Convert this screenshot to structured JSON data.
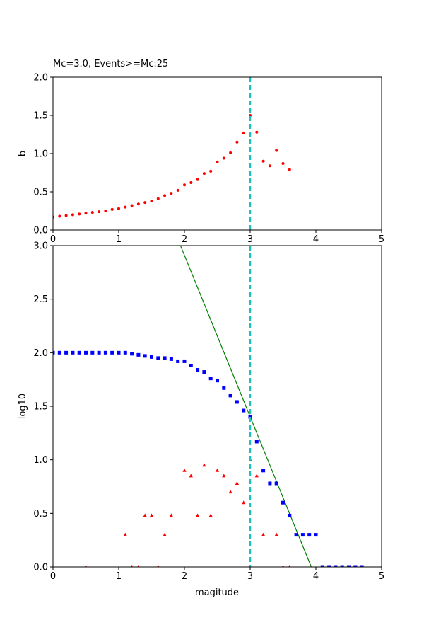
{
  "chart_data": [
    {
      "type": "scatter",
      "title": "Mc=3.0, Events>=Mc:25",
      "xlabel": "",
      "ylabel": "b",
      "xlim": [
        0,
        5
      ],
      "ylim": [
        0,
        2.0
      ],
      "xticks": [
        "0",
        "1",
        "2",
        "3",
        "4",
        "5"
      ],
      "yticks": [
        "0.0",
        "0.5",
        "1.0",
        "1.5",
        "2.0"
      ],
      "grid": false,
      "series": [
        {
          "color": "#ff0000",
          "marker": "circle",
          "x": [
            0.0,
            0.1,
            0.2,
            0.3,
            0.4,
            0.5,
            0.6,
            0.7,
            0.8,
            0.9,
            1.0,
            1.1,
            1.2,
            1.3,
            1.4,
            1.5,
            1.6,
            1.7,
            1.8,
            1.9,
            2.0,
            2.1,
            2.2,
            2.3,
            2.4,
            2.5,
            2.6,
            2.7,
            2.8,
            2.9,
            3.0,
            3.1,
            3.2,
            3.3,
            3.4,
            3.5,
            3.6
          ],
          "y": [
            0.17,
            0.18,
            0.19,
            0.2,
            0.21,
            0.22,
            0.23,
            0.24,
            0.25,
            0.27,
            0.28,
            0.3,
            0.32,
            0.34,
            0.36,
            0.38,
            0.41,
            0.45,
            0.48,
            0.52,
            0.59,
            0.62,
            0.66,
            0.74,
            0.77,
            0.89,
            0.94,
            1.01,
            1.15,
            1.27,
            1.5,
            1.28,
            0.9,
            0.84,
            1.04,
            0.87,
            0.79
          ]
        }
      ],
      "vline": {
        "x": 3.0,
        "color": "#20c0c0",
        "style": "dashed"
      }
    },
    {
      "type": "scatter",
      "title": "",
      "xlabel": "magitude",
      "ylabel": "log10",
      "xlim": [
        0,
        5
      ],
      "ylim": [
        0,
        3.0
      ],
      "xticks": [
        "0",
        "1",
        "2",
        "3",
        "4",
        "5"
      ],
      "yticks": [
        "0.0",
        "0.5",
        "1.0",
        "1.5",
        "2.0",
        "2.5",
        "3.0"
      ],
      "grid": false,
      "series": [
        {
          "color": "#0000ff",
          "marker": "square",
          "x": [
            0.0,
            0.1,
            0.2,
            0.3,
            0.4,
            0.5,
            0.6,
            0.7,
            0.8,
            0.9,
            1.0,
            1.1,
            1.2,
            1.3,
            1.4,
            1.5,
            1.6,
            1.7,
            1.8,
            1.9,
            2.0,
            2.1,
            2.2,
            2.3,
            2.4,
            2.5,
            2.6,
            2.7,
            2.8,
            2.9,
            3.0,
            3.1,
            3.2,
            3.3,
            3.4,
            3.5,
            3.6,
            3.7,
            3.8,
            3.9,
            4.0,
            4.1,
            4.2,
            4.3,
            4.4,
            4.5,
            4.6,
            4.7
          ],
          "y": [
            2.0,
            2.0,
            2.0,
            2.0,
            2.0,
            2.0,
            2.0,
            2.0,
            2.0,
            2.0,
            2.0,
            2.0,
            1.99,
            1.98,
            1.97,
            1.96,
            1.95,
            1.95,
            1.94,
            1.92,
            1.92,
            1.88,
            1.84,
            1.82,
            1.76,
            1.74,
            1.67,
            1.6,
            1.54,
            1.46,
            1.4,
            1.17,
            0.9,
            0.78,
            0.78,
            0.6,
            0.48,
            0.3,
            0.3,
            0.3,
            0.3,
            0.0,
            0.0,
            0.0,
            0.0,
            0.0,
            0.0,
            0.0
          ]
        },
        {
          "color": "#ff0000",
          "marker": "triangle",
          "x": [
            0.5,
            1.1,
            1.2,
            1.3,
            1.4,
            1.5,
            1.6,
            1.7,
            1.8,
            2.0,
            2.1,
            2.2,
            2.3,
            2.4,
            2.5,
            2.6,
            2.7,
            2.8,
            2.9,
            3.0,
            3.1,
            3.2,
            3.4,
            3.5,
            3.6
          ],
          "y": [
            0.0,
            0.3,
            0.0,
            0.0,
            0.48,
            0.48,
            0.0,
            0.3,
            0.48,
            0.9,
            0.85,
            0.48,
            0.95,
            0.48,
            0.9,
            0.85,
            0.7,
            0.78,
            0.6,
            1.0,
            0.85,
            0.3,
            0.3,
            0.0,
            0.0
          ]
        }
      ],
      "fit_line": {
        "color": "#008000",
        "x": [
          1.94,
          3.93
        ],
        "y": [
          3.0,
          0.0
        ]
      },
      "vline": {
        "x": 3.0,
        "color": "#20c0c0",
        "style": "dashed"
      }
    }
  ]
}
